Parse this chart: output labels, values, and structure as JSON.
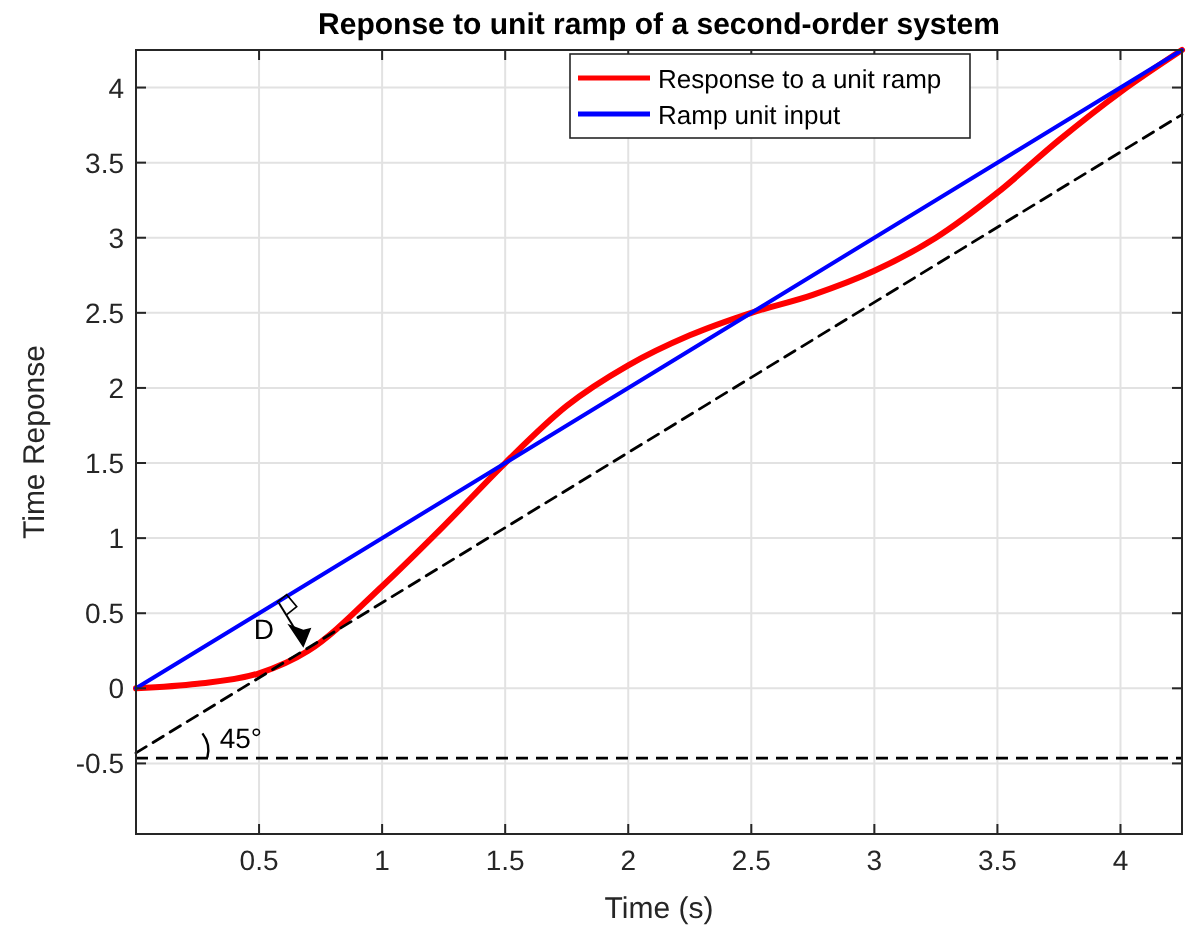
{
  "chart_data": {
    "type": "line",
    "title": "Reponse to unit ramp of a second-order system",
    "xlabel": "Time (s)",
    "ylabel": "Time Reponse",
    "xlim": [
      0,
      4.25
    ],
    "ylim": [
      -0.97,
      4.25
    ],
    "xticks": [
      0.5,
      1,
      1.5,
      2,
      2.5,
      3,
      3.5,
      4
    ],
    "yticks": [
      -0.5,
      0,
      0.5,
      1,
      1.5,
      2,
      2.5,
      3,
      3.5,
      4
    ],
    "grid": true,
    "legend": "top",
    "line_style": "solid",
    "series": [
      {
        "name": "Response to a unit ramp",
        "color": "#ff0000",
        "x": [
          0,
          0.25,
          0.5,
          0.7,
          1,
          1.25,
          1.5,
          1.75,
          2,
          2.25,
          2.5,
          2.75,
          3,
          3.25,
          3.5,
          3.75,
          4,
          4.25
        ],
        "values": [
          0,
          0.03,
          0.1,
          0.25,
          0.68,
          1.08,
          1.5,
          1.88,
          2.15,
          2.35,
          2.5,
          2.62,
          2.78,
          3.0,
          3.3,
          3.65,
          3.97,
          4.25
        ]
      },
      {
        "name": "Ramp unit input",
        "color": "#0000ff",
        "x": [
          0,
          4.25
        ],
        "values": [
          0,
          4.25
        ]
      },
      {
        "color": "#000000",
        "line_style": "dashed",
        "x": [
          0,
          4.25
        ],
        "values": [
          -0.43,
          3.82
        ]
      }
    ],
    "ref_lines": [
      {
        "axis": "y",
        "value": -0.465,
        "color": "#000000",
        "line_style": "dashed"
      }
    ],
    "annotations": [
      "D",
      "45°"
    ]
  }
}
